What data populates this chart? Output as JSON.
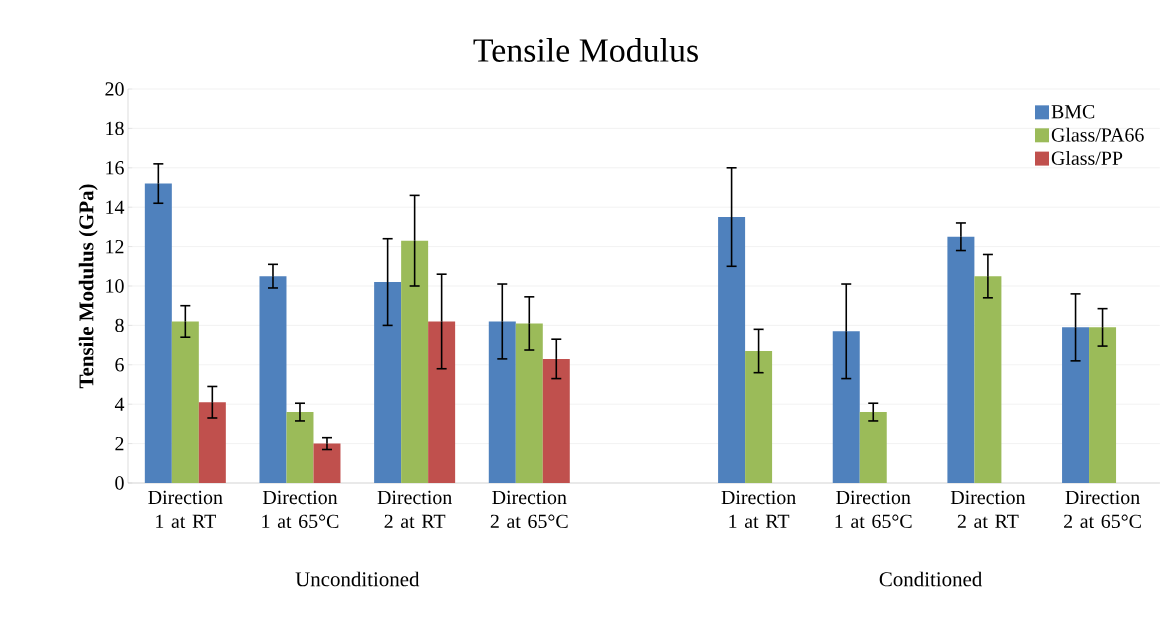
{
  "chart_data": {
    "type": "bar",
    "title": "Tensile Modulus",
    "ylabel": "Tensile Modulus (GPa)",
    "categories": [
      "Direction 1 at RT",
      "Direction 1 at 65°C",
      "Direction 2 at RT",
      "Direction 2 at 65°C",
      null,
      "Direction 1 at RT",
      "Direction 1 at 65°C",
      "Direction 2 at RT",
      "Direction 2 at 65°C"
    ],
    "series": [
      {
        "name": "BMC",
        "color": "#4f81bd",
        "values": [
          15.2,
          10.5,
          10.2,
          8.2,
          null,
          13.5,
          7.7,
          12.5,
          7.9
        ],
        "errors": [
          1.0,
          0.6,
          2.2,
          1.9,
          null,
          2.5,
          2.4,
          0.7,
          1.7
        ]
      },
      {
        "name": "Glass/PA66",
        "color": "#9bbb59",
        "values": [
          8.2,
          3.6,
          12.3,
          8.1,
          null,
          6.7,
          3.6,
          10.5,
          7.9
        ],
        "errors": [
          0.8,
          0.45,
          2.3,
          1.35,
          null,
          1.1,
          0.45,
          1.1,
          0.95
        ]
      },
      {
        "name": "Glass/PP",
        "color": "#c0504d",
        "values": [
          4.1,
          2.0,
          8.2,
          6.3,
          null,
          null,
          null,
          null,
          null
        ],
        "errors": [
          0.8,
          0.3,
          2.4,
          1.0,
          null,
          null,
          null,
          null,
          null
        ]
      }
    ],
    "ylim": [
      0,
      20
    ],
    "yticks": [
      0,
      2,
      4,
      6,
      8,
      10,
      12,
      14,
      16,
      18,
      20
    ],
    "grid": "y",
    "legend": "top right",
    "annotations": [
      "Unconditioned",
      "Conditioned"
    ]
  }
}
